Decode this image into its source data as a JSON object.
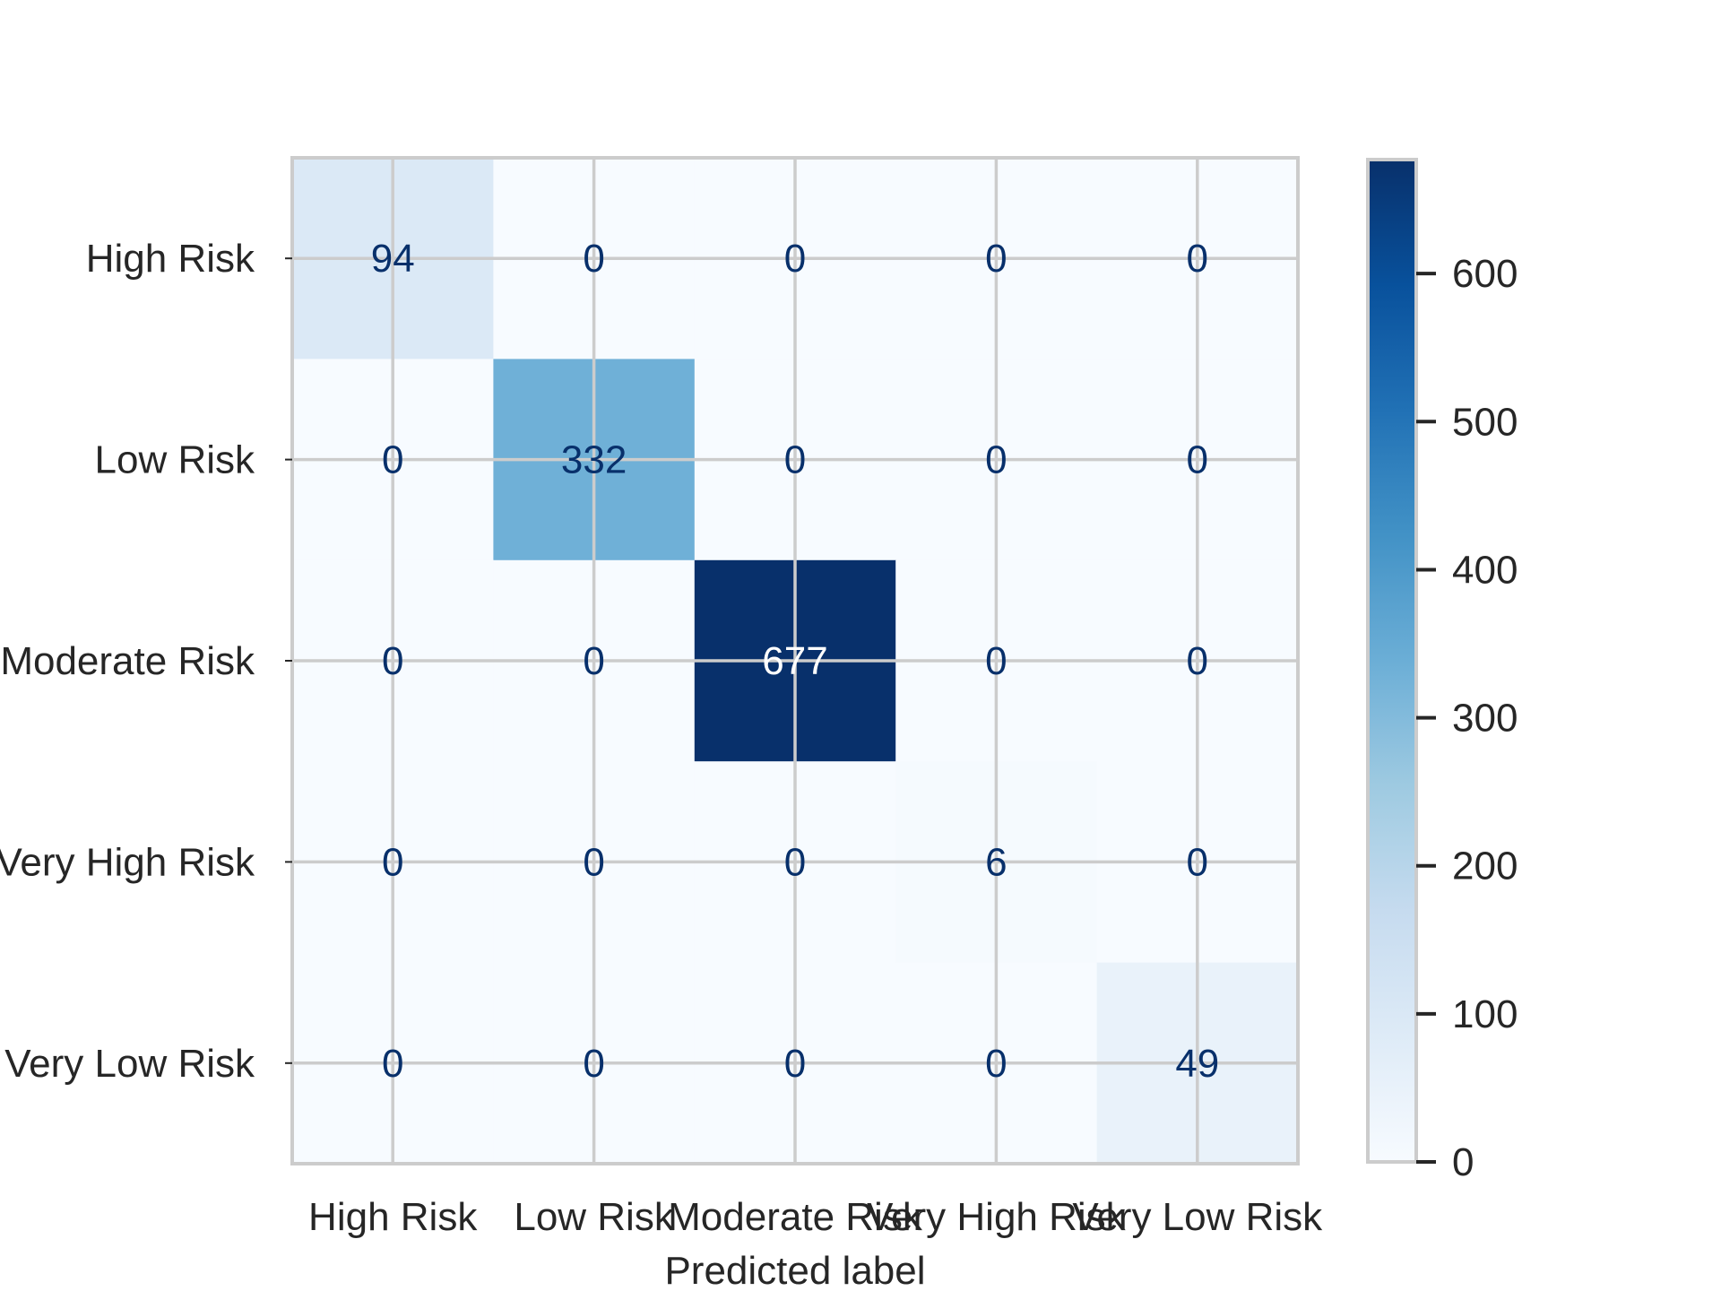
{
  "chart_data": {
    "type": "heatmap",
    "title": "",
    "xlabel": "Predicted label",
    "ylabel": "",
    "x_categories": [
      "High Risk",
      "Low Risk",
      "Moderate Risk",
      "Very High Risk",
      "Very Low Risk"
    ],
    "y_categories": [
      "High Risk",
      "Low Risk",
      "Moderate Risk",
      "Very High Risk",
      "Very Low Risk"
    ],
    "matrix": [
      [
        94,
        0,
        0,
        0,
        0
      ],
      [
        0,
        332,
        0,
        0,
        0
      ],
      [
        0,
        0,
        677,
        0,
        0
      ],
      [
        0,
        0,
        0,
        6,
        0
      ],
      [
        0,
        0,
        0,
        0,
        49
      ]
    ],
    "colormap": "Blues",
    "colorbar": {
      "range": [
        0,
        677
      ],
      "ticks": [
        0,
        100,
        200,
        300,
        400,
        500,
        600
      ]
    },
    "grid": true,
    "colors": {
      "grid": "#cccccc",
      "text_dark": "#08306b",
      "text_light": "#ffffff"
    }
  }
}
